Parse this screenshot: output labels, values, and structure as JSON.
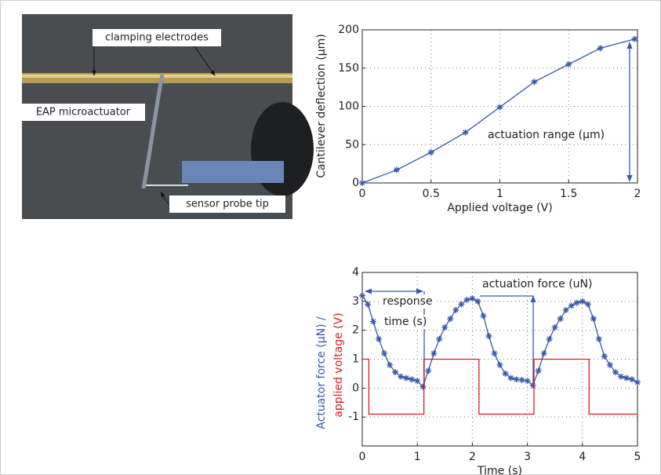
{
  "photo": {
    "labels": [
      "clamping electrodes",
      "EAP microactuator",
      "sensor probe tip"
    ]
  },
  "chart_data": [
    {
      "type": "line",
      "x_label": "Applied voltage (V)",
      "y_label": "Cantilever deflection (μm)",
      "xlim": [
        0,
        2
      ],
      "ylim": [
        0,
        200
      ],
      "xticks": [
        0,
        0.5,
        1,
        1.5,
        2
      ],
      "yticks": [
        0,
        50,
        100,
        150,
        200
      ],
      "grid": true,
      "series": [
        {
          "color": "#3a5aa8",
          "x": [
            0,
            0.25,
            0.5,
            0.75,
            1,
            1.25,
            1.5,
            1.73,
            1.98
          ],
          "values": [
            0,
            17,
            40,
            66,
            99,
            132,
            155,
            176,
            188
          ]
        }
      ],
      "annotations": [
        "actuation range (μm)"
      ]
    },
    {
      "type": "line",
      "x_label": "Time (s)",
      "y_labels": [
        "Actuator force (μN) /",
        "applied voltage (V)"
      ],
      "xlim": [
        0,
        5
      ],
      "ylim": [
        -2,
        4
      ],
      "xticks": [
        0,
        1,
        2,
        3,
        4,
        5
      ],
      "yticks": [
        -1,
        0,
        1,
        2,
        3,
        4
      ],
      "grid": true,
      "series": [
        {
          "color": "#3a5aa8",
          "markers": true,
          "x": [
            0,
            0.1,
            0.2,
            0.3,
            0.4,
            0.5,
            0.6,
            0.7,
            0.8,
            0.9,
            1,
            1.1,
            1.2,
            1.3,
            1.4,
            1.5,
            1.6,
            1.7,
            1.8,
            1.9,
            2,
            2.1,
            2.2,
            2.3,
            2.4,
            2.5,
            2.6,
            2.7,
            2.8,
            2.9,
            3,
            3.1,
            3.2,
            3.3,
            3.4,
            3.5,
            3.6,
            3.7,
            3.8,
            3.9,
            4,
            4.1,
            4.2,
            4.3,
            4.4,
            4.5,
            4.6,
            4.7,
            4.8,
            4.9,
            5
          ],
          "values": [
            3.2,
            2.9,
            2.3,
            1.7,
            1.2,
            0.8,
            0.55,
            0.4,
            0.35,
            0.3,
            0.25,
            0.05,
            0.6,
            1.2,
            1.7,
            2.1,
            2.4,
            2.7,
            2.9,
            3.05,
            3.1,
            3.0,
            2.5,
            1.8,
            1.2,
            0.8,
            0.5,
            0.35,
            0.3,
            0.28,
            0.25,
            0.1,
            0.6,
            1.2,
            1.7,
            2.1,
            2.4,
            2.7,
            2.85,
            2.95,
            3.0,
            2.9,
            2.4,
            1.7,
            1.1,
            0.8,
            0.55,
            0.4,
            0.35,
            0.3,
            0.2
          ]
        },
        {
          "color": "#e0191f",
          "markers": false,
          "x": [
            0,
            0.12,
            0.12,
            1.12,
            1.12,
            2.12,
            2.12,
            3.12,
            3.12,
            4.12,
            4.12,
            5
          ],
          "values": [
            1,
            1,
            -0.9,
            -0.9,
            1,
            1,
            -0.9,
            -0.9,
            1,
            1,
            -0.9,
            -0.9
          ]
        }
      ],
      "annotations": [
        "response",
        "time (s)",
        "actuation force (uN)"
      ]
    }
  ]
}
